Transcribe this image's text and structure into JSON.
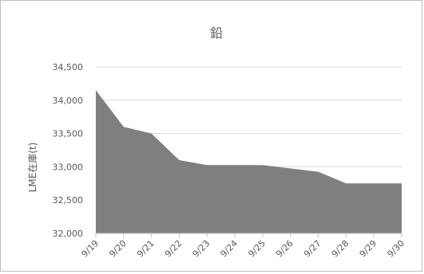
{
  "chart_data": {
    "type": "area",
    "title": "鉛",
    "xlabel": "",
    "ylabel": "LME在庫(t)",
    "categories": [
      "9/19",
      "9/20",
      "9/21",
      "9/22",
      "9/23",
      "9/24",
      "9/25",
      "9/26",
      "9/27",
      "9/28",
      "9/29",
      "9/30"
    ],
    "values": [
      34150,
      33600,
      33500,
      33100,
      33025,
      33025,
      33025,
      32975,
      32925,
      32750,
      32750,
      32750
    ],
    "ylim": [
      32000,
      34500
    ],
    "yticks": [
      32000,
      32500,
      33000,
      33500,
      34000,
      34500
    ],
    "ytick_labels": [
      "32,000",
      "32,500",
      "33,000",
      "33,500",
      "34,000",
      "34,500"
    ],
    "grid": true,
    "legend": "none",
    "colors": {
      "fill": "#7f7f7f",
      "grid": "#d9d9d9",
      "text": "#595959"
    }
  }
}
